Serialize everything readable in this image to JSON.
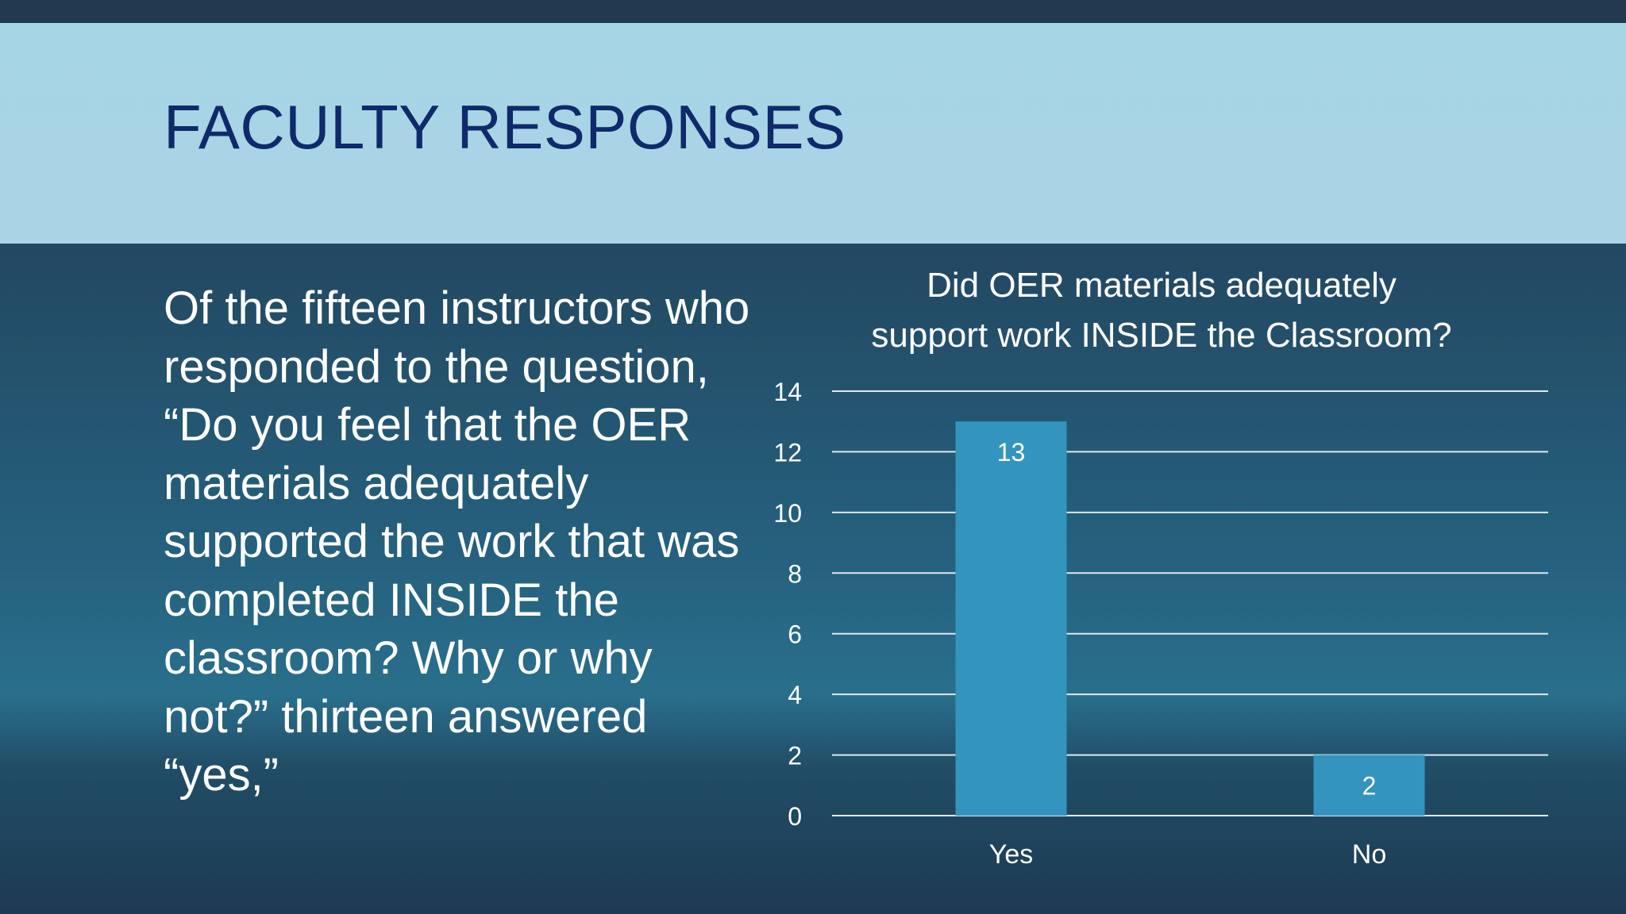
{
  "slide": {
    "title": "FACULTY RESPONSES",
    "body_text": "Of the fifteen instructors who responded to the question, “Do you feel that the OER materials adequately supported the work that was completed INSIDE the classroom? Why or why not?” thirteen answered “yes,”"
  },
  "colors": {
    "title_band": "#a9d4e6",
    "title_text": "#0f2a6b",
    "bar": "#3395bd",
    "gridline": "#dfe8ee"
  },
  "chart_data": {
    "type": "bar",
    "title_lines": [
      "Did OER materials adequately",
      "support work INSIDE the Classroom?"
    ],
    "categories": [
      "Yes",
      "No"
    ],
    "values": [
      13,
      2
    ],
    "data_labels": [
      "13",
      "2"
    ],
    "ylim": [
      0,
      14
    ],
    "yticks": [
      "0",
      "2",
      "4",
      "6",
      "8",
      "10",
      "12",
      "14"
    ],
    "xlabel": "",
    "ylabel": "",
    "grid": true,
    "legend": "none"
  }
}
